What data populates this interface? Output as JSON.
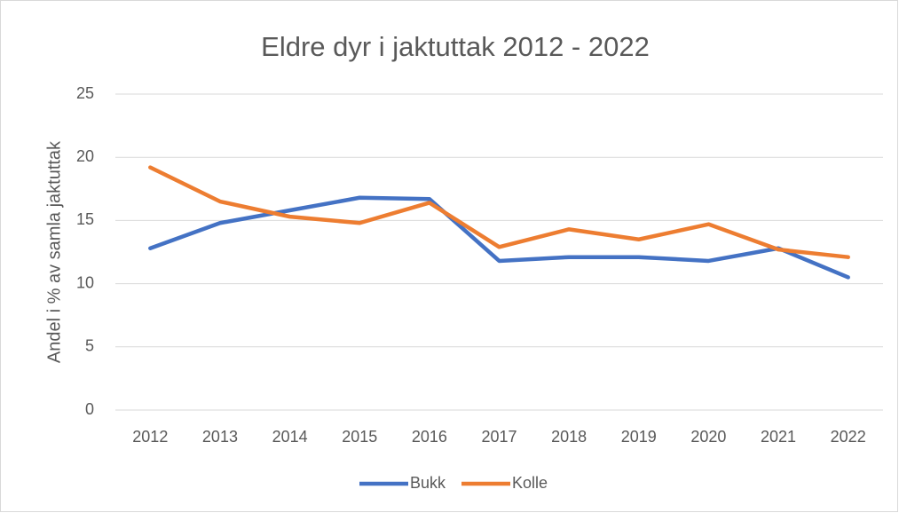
{
  "chart_data": {
    "type": "line",
    "title": "Eldre dyr i jaktuttak 2012 - 2022",
    "y_label": "Andel i % av samla jaktuttak",
    "categories": [
      "2012",
      "2013",
      "2014",
      "2015",
      "2016",
      "2017",
      "2018",
      "2019",
      "2020",
      "2021",
      "2022"
    ],
    "series": [
      {
        "name": "Bukk",
        "color": "#4472c4",
        "values": [
          12.8,
          14.8,
          15.8,
          16.8,
          16.7,
          11.8,
          12.1,
          12.1,
          11.8,
          12.8,
          10.5
        ]
      },
      {
        "name": "Kolle",
        "color": "#ed7d31",
        "values": [
          19.2,
          16.5,
          15.3,
          14.8,
          16.4,
          12.9,
          14.3,
          13.5,
          14.7,
          12.7,
          12.1
        ]
      }
    ],
    "ylim": [
      0,
      25
    ],
    "yticks": [
      0,
      5,
      10,
      15,
      20,
      25
    ],
    "grid": true,
    "legend": "bottom"
  }
}
